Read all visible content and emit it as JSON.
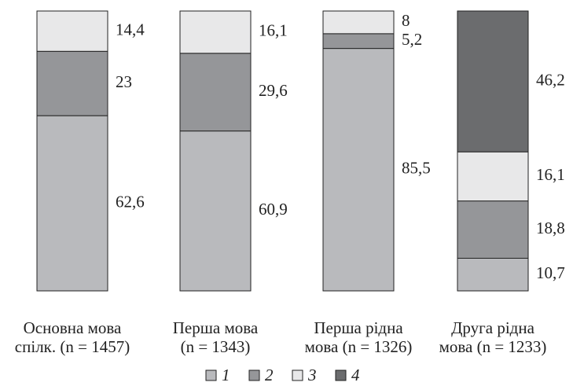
{
  "chart_data": {
    "type": "bar",
    "stacked": "percent",
    "categories": [
      [
        "Основна мова",
        "спілк. (n = 1457)"
      ],
      [
        "Перша мова",
        "(n = 1343)"
      ],
      [
        "Перша рідна",
        "мова (n = 1326)"
      ],
      [
        "Друга рідна",
        "мова (n = 1233)"
      ]
    ],
    "series": [
      {
        "name": "1",
        "color": "#b9babd",
        "values": [
          62.6,
          60.9,
          85.5,
          10.7
        ],
        "value_labels": [
          "62,6",
          "60,9",
          "85,5",
          "10,7"
        ]
      },
      {
        "name": "2",
        "color": "#959699",
        "values": [
          23,
          29.6,
          5.2,
          18.8
        ],
        "value_labels": [
          "23",
          "29,6",
          "5,2",
          "18,8"
        ]
      },
      {
        "name": "3",
        "color": "#e8e8e9",
        "values": [
          14.4,
          16.1,
          8,
          16.1
        ],
        "value_labels": [
          "14,4",
          "16,1",
          "8",
          "16,1"
        ]
      },
      {
        "name": "4",
        "color": "#6b6c6e",
        "values": [
          null,
          null,
          null,
          46.2
        ],
        "value_labels": [
          null,
          null,
          null,
          "46,2"
        ]
      }
    ]
  }
}
